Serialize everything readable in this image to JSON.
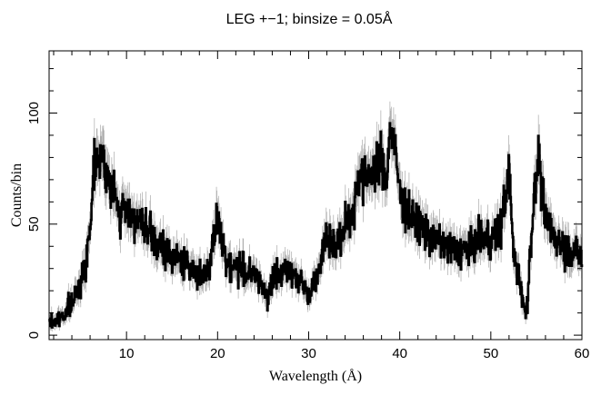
{
  "chart_data": {
    "type": "line",
    "title": "LEG +−1; binsize = 0.05Å",
    "xlabel": "Wavelength (Å)",
    "ylabel": "Counts/bin",
    "xlim": [
      1.5,
      60
    ],
    "ylim": [
      -2,
      128
    ],
    "xticks_major": [
      10,
      20,
      30,
      40,
      50,
      60
    ],
    "xtick_labels": [
      "10",
      "20",
      "30",
      "40",
      "50",
      "60"
    ],
    "yticks_major": [
      0,
      50,
      100
    ],
    "ytick_labels": [
      "0",
      "50",
      "100"
    ],
    "grid": false,
    "legend": "none",
    "binsize": 0.05,
    "series": [
      {
        "style": "histogram-with-error-bars",
        "color": "#000000",
        "errorbar_color": "#aaaaaa",
        "x": [
          2,
          2.5,
          3,
          3.5,
          4,
          4.5,
          5,
          5.5,
          6,
          6.5,
          7,
          7.5,
          8,
          8.5,
          9,
          9.5,
          10,
          11,
          12,
          13,
          14,
          15,
          16,
          17,
          18,
          19,
          19.5,
          20,
          20.5,
          21,
          22,
          23,
          24,
          25,
          25.5,
          26,
          27,
          28,
          29,
          30,
          31,
          31.5,
          32,
          33,
          34,
          35,
          35.5,
          36,
          36.5,
          37,
          37.5,
          38,
          38.5,
          39,
          39.5,
          40,
          41,
          42,
          43,
          44,
          45,
          46,
          47,
          48,
          49,
          50,
          51,
          51.5,
          52,
          52.5,
          53,
          53.5,
          53.8,
          54,
          54.5,
          55,
          55.3,
          55.5,
          56,
          57,
          58,
          59,
          60
        ],
        "y": [
          6,
          7,
          9,
          12,
          14,
          19,
          25,
          30,
          50,
          80,
          83,
          77,
          70,
          65,
          58,
          54,
          58,
          52,
          48,
          42,
          38,
          36,
          33,
          30,
          28,
          29,
          40,
          52,
          45,
          32,
          31,
          29,
          27,
          22,
          18,
          24,
          28,
          30,
          25,
          18,
          29,
          38,
          45,
          40,
          48,
          58,
          75,
          70,
          73,
          75,
          72,
          80,
          70,
          95,
          82,
          65,
          54,
          50,
          46,
          43,
          40,
          38,
          38,
          40,
          44,
          43,
          47,
          60,
          75,
          35,
          30,
          17,
          8,
          15,
          50,
          70,
          85,
          65,
          52,
          45,
          40,
          38,
          35
        ]
      }
    ]
  }
}
